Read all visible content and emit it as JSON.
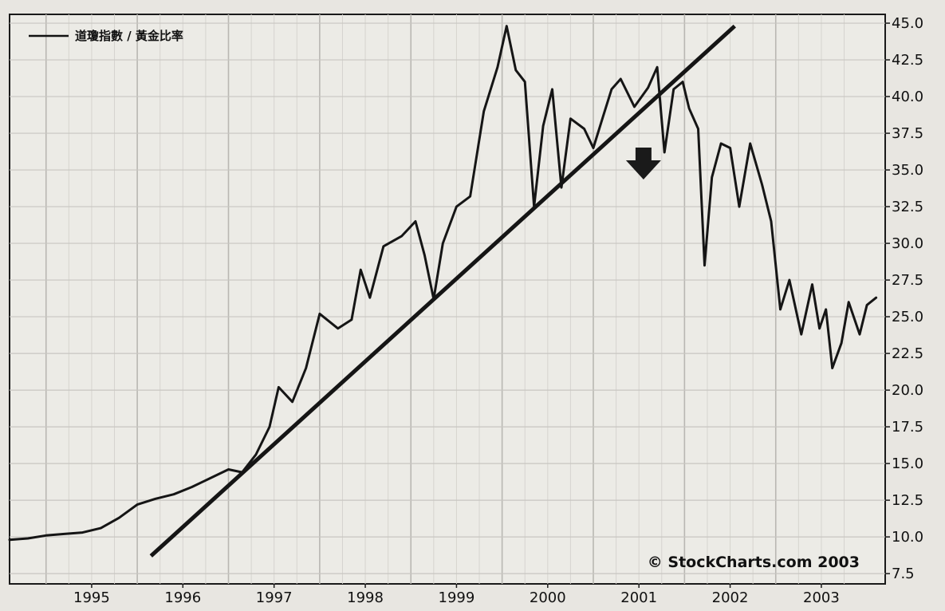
{
  "chart_data": {
    "type": "line",
    "title": "",
    "legend": "道瓊指數 / 黃金比率",
    "legend_position": "top-left",
    "credit": "© StockCharts.com 2003",
    "xlabel": "",
    "ylabel": "",
    "x_ticks": [
      "1995",
      "1996",
      "1997",
      "1998",
      "1999",
      "2000",
      "2001",
      "2002",
      "2003"
    ],
    "y_ticks": [
      "7.5",
      "10.0",
      "12.5",
      "15.0",
      "17.5",
      "20.0",
      "22.5",
      "25.0",
      "27.5",
      "30.0",
      "32.5",
      "35.0",
      "37.5",
      "40.0",
      "42.5",
      "45.0"
    ],
    "xlim": [
      1994.1,
      2003.7
    ],
    "ylim": [
      6.8,
      45.6
    ],
    "y_axis_side": "right",
    "grid": true,
    "series": [
      {
        "name": "道瓊指數 / 黃金比率",
        "points": [
          [
            1994.1,
            9.8
          ],
          [
            1994.3,
            9.9
          ],
          [
            1994.5,
            10.1
          ],
          [
            1994.7,
            10.2
          ],
          [
            1994.9,
            10.3
          ],
          [
            1995.1,
            10.6
          ],
          [
            1995.3,
            11.3
          ],
          [
            1995.5,
            12.2
          ],
          [
            1995.7,
            12.6
          ],
          [
            1995.9,
            12.9
          ],
          [
            1996.1,
            13.4
          ],
          [
            1996.3,
            14.0
          ],
          [
            1996.5,
            14.6
          ],
          [
            1996.65,
            14.4
          ],
          [
            1996.8,
            15.6
          ],
          [
            1996.95,
            17.5
          ],
          [
            1997.05,
            20.2
          ],
          [
            1997.2,
            19.2
          ],
          [
            1997.35,
            21.5
          ],
          [
            1997.5,
            25.2
          ],
          [
            1997.7,
            24.2
          ],
          [
            1997.85,
            24.8
          ],
          [
            1997.95,
            28.2
          ],
          [
            1998.05,
            26.3
          ],
          [
            1998.2,
            29.8
          ],
          [
            1998.4,
            30.5
          ],
          [
            1998.55,
            31.5
          ],
          [
            1998.65,
            29.2
          ],
          [
            1998.75,
            26.2
          ],
          [
            1998.85,
            30.0
          ],
          [
            1999.0,
            32.5
          ],
          [
            1999.15,
            33.2
          ],
          [
            1999.3,
            39.0
          ],
          [
            1999.45,
            42.0
          ],
          [
            1999.55,
            44.8
          ],
          [
            1999.65,
            41.8
          ],
          [
            1999.75,
            41.0
          ],
          [
            1999.85,
            32.5
          ],
          [
            1999.95,
            38.0
          ],
          [
            2000.05,
            40.5
          ],
          [
            2000.15,
            33.8
          ],
          [
            2000.25,
            38.5
          ],
          [
            2000.4,
            37.8
          ],
          [
            2000.5,
            36.5
          ],
          [
            2000.6,
            38.5
          ],
          [
            2000.7,
            40.5
          ],
          [
            2000.8,
            41.2
          ],
          [
            2000.95,
            39.3
          ],
          [
            2001.1,
            40.6
          ],
          [
            2001.2,
            42.0
          ],
          [
            2001.28,
            36.2
          ],
          [
            2001.38,
            40.5
          ],
          [
            2001.48,
            41.0
          ],
          [
            2001.55,
            39.2
          ],
          [
            2001.65,
            37.8
          ],
          [
            2001.72,
            28.5
          ],
          [
            2001.8,
            34.5
          ],
          [
            2001.9,
            36.8
          ],
          [
            2002.0,
            36.5
          ],
          [
            2002.1,
            32.5
          ],
          [
            2002.22,
            36.8
          ],
          [
            2002.35,
            34.0
          ],
          [
            2002.45,
            31.5
          ],
          [
            2002.55,
            25.5
          ],
          [
            2002.65,
            27.5
          ],
          [
            2002.78,
            23.8
          ],
          [
            2002.9,
            27.2
          ],
          [
            2002.98,
            24.2
          ],
          [
            2003.05,
            25.5
          ],
          [
            2003.12,
            21.5
          ],
          [
            2003.22,
            23.2
          ],
          [
            2003.3,
            26.0
          ],
          [
            2003.42,
            23.8
          ],
          [
            2003.5,
            25.8
          ],
          [
            2003.6,
            26.3
          ]
        ]
      },
      {
        "name": "",
        "kind": "trendline",
        "points": [
          [
            1995.65,
            8.7
          ],
          [
            2002.05,
            44.8
          ]
        ]
      }
    ],
    "annotations": [
      {
        "type": "down-arrow",
        "x": 2001.05,
        "y": 35.0
      }
    ]
  }
}
